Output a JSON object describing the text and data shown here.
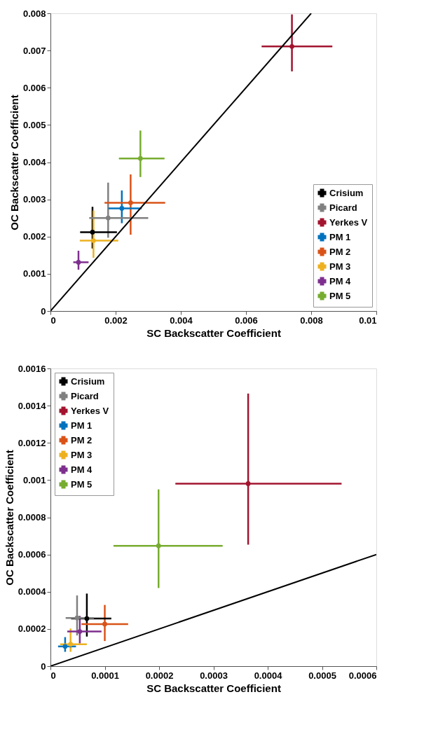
{
  "chart_data": [
    {
      "type": "scatter",
      "xlabel": "SC Backscatter Coefficient",
      "ylabel": "OC Backscatter Coefficient",
      "xlim": [
        0,
        0.01
      ],
      "ylim": [
        0,
        0.008
      ],
      "xticks": [
        0,
        0.002,
        0.004,
        0.006,
        0.008,
        0.01
      ],
      "yticks": [
        0,
        0.001,
        0.002,
        0.003,
        0.004,
        0.005,
        0.006,
        0.007,
        0.008
      ],
      "legend": "bottom right",
      "series": [
        {
          "name": "Crisium",
          "color": "#000000",
          "x": [
            0.00129
          ],
          "values": [
            0.00212
          ],
          "errors": [
            [
              0.00168,
              0.0028
            ]
          ],
          "xerrors": [
            [
              0.00091,
              0.00204
            ]
          ]
        },
        {
          "name": "Picard",
          "color": "#808080",
          "x": [
            0.00177
          ],
          "values": [
            0.0025
          ],
          "errors": [
            [
              0.00197,
              0.00345
            ]
          ],
          "xerrors": [
            [
              0.00119,
              0.003
            ]
          ]
        },
        {
          "name": "Yerkes V",
          "color": "#a2142f",
          "x": [
            0.00741
          ],
          "values": [
            0.00711
          ],
          "errors": [
            [
              0.00644,
              0.00797
            ]
          ],
          "xerrors": [
            [
              0.00648,
              0.00865
            ]
          ]
        },
        {
          "name": "PM 1",
          "color": "#0072bd",
          "x": [
            0.00219
          ],
          "values": [
            0.00276
          ],
          "errors": [
            [
              0.00236,
              0.00324
            ]
          ],
          "xerrors": [
            [
              0.00178,
              0.0028
            ]
          ]
        },
        {
          "name": "PM 2",
          "color": "#d95319",
          "x": [
            0.00246
          ],
          "values": [
            0.00291
          ],
          "errors": [
            [
              0.00205,
              0.00367
            ]
          ],
          "xerrors": [
            [
              0.00166,
              0.00352
            ]
          ]
        },
        {
          "name": "PM 3",
          "color": "#edb120",
          "x": [
            0.00132
          ],
          "values": [
            0.00189
          ],
          "errors": [
            [
              0.00143,
              0.0027
            ]
          ],
          "xerrors": [
            [
              0.0009,
              0.00208
            ]
          ]
        },
        {
          "name": "PM 4",
          "color": "#7e2f8e",
          "x": [
            0.00086
          ],
          "values": [
            0.00131
          ],
          "errors": [
            [
              0.00111,
              0.00162
            ]
          ],
          "xerrors": [
            [
              0.0007,
              0.00117
            ]
          ]
        },
        {
          "name": "PM 5",
          "color": "#77ac30",
          "x": [
            0.00276
          ],
          "values": [
            0.0041
          ],
          "errors": [
            [
              0.0036,
              0.00485
            ]
          ],
          "xerrors": [
            [
              0.0021,
              0.0035
            ]
          ]
        },
        {
          "type": "line",
          "color": "#000000",
          "x": [
            0,
            0.008
          ],
          "values": [
            0,
            0.008
          ]
        }
      ]
    },
    {
      "type": "scatter",
      "xlabel": "SC Backscatter Coefficient",
      "ylabel": "OC Backscatter Coefficient",
      "xlim": [
        0,
        0.0006
      ],
      "ylim": [
        0,
        0.0016
      ],
      "xticks": [
        0,
        0.0001,
        0.0002,
        0.0003,
        0.0004,
        0.0005,
        0.0006
      ],
      "yticks": [
        0,
        0.0002,
        0.0004,
        0.0006,
        0.0008,
        0.001,
        0.0012,
        0.0014,
        0.0016
      ],
      "legend": "top left",
      "series": [
        {
          "name": "Crisium",
          "color": "#000000",
          "x": [
            6.7e-05
          ],
          "values": [
            0.000256
          ],
          "errors": [
            [
              0.000159,
              0.00039
            ]
          ],
          "xerrors": [
            [
              3.8e-05,
              0.000112
            ]
          ]
        },
        {
          "name": "Picard",
          "color": "#808080",
          "x": [
            4.9e-05
          ],
          "values": [
            0.000259
          ],
          "errors": [
            [
              0.000165,
              0.00038
            ]
          ],
          "xerrors": [
            [
              2.8e-05,
              8e-05
            ]
          ]
        },
        {
          "name": "Yerkes V",
          "color": "#a2142f",
          "x": [
            0.000364
          ],
          "values": [
            0.000981
          ],
          "errors": [
            [
              0.000653,
              0.001465
            ]
          ],
          "xerrors": [
            [
              0.00023,
              0.000536
            ]
          ]
        },
        {
          "name": "PM 1",
          "color": "#0072bd",
          "x": [
            2.7e-05
          ],
          "values": [
            0.000106
          ],
          "errors": [
            [
              7.7e-05,
              0.000156
            ]
          ],
          "xerrors": [
            [
              1.4e-05,
              4.7e-05
            ]
          ]
        },
        {
          "name": "PM 2",
          "color": "#d95319",
          "x": [
            0.0001
          ],
          "values": [
            0.000226
          ],
          "errors": [
            [
              0.000135,
              0.000329
            ]
          ],
          "xerrors": [
            [
              5.7e-05,
              0.000143
            ]
          ]
        },
        {
          "name": "PM 3",
          "color": "#edb120",
          "x": [
            3.7e-05
          ],
          "values": [
            0.000118
          ],
          "errors": [
            [
              7.7e-05,
              0.000202
            ]
          ],
          "xerrors": [
            [
              1.8e-05,
              6.7e-05
            ]
          ]
        },
        {
          "name": "PM 4",
          "color": "#7e2f8e",
          "x": [
            5.4e-05
          ],
          "values": [
            0.000186
          ],
          "errors": [
            [
              0.000122,
              0.00027
            ]
          ],
          "xerrors": [
            [
              3.1e-05,
              9.4e-05
            ]
          ]
        },
        {
          "name": "PM 5",
          "color": "#77ac30",
          "x": [
            0.000199
          ],
          "values": [
            0.000647
          ],
          "errors": [
            [
              0.00042,
              0.00095
            ]
          ],
          "xerrors": [
            [
              0.000116,
              0.000317
            ]
          ]
        },
        {
          "type": "line",
          "color": "#000000",
          "x": [
            0,
            0.0006
          ],
          "values": [
            0,
            0.0006
          ]
        }
      ]
    }
  ]
}
